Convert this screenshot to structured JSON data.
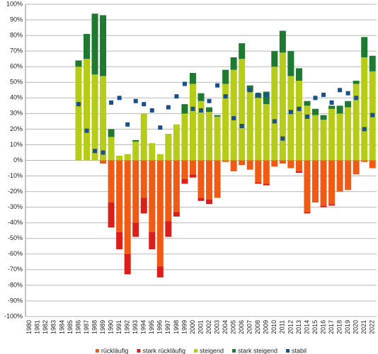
{
  "chart_data": {
    "type": "bar",
    "stacked": true,
    "categories": [
      "1980",
      "1981",
      "1982",
      "1983",
      "1984",
      "1985",
      "1986",
      "1987",
      "1988",
      "1989",
      "1990",
      "1991",
      "1992",
      "1993",
      "1994",
      "1995",
      "1996",
      "1997",
      "1998",
      "1999",
      "2000",
      "2001",
      "2002",
      "2003",
      "2004",
      "2005",
      "2006",
      "2007",
      "2008",
      "2009",
      "2010",
      "2011",
      "2012",
      "2013",
      "2014",
      "2015",
      "2016",
      "2017",
      "2018",
      "2019",
      "2020",
      "2021",
      "2022"
    ],
    "series": [
      {
        "name": "rückläufig",
        "type": "bar",
        "color": "#f05a14",
        "values": [
          null,
          null,
          null,
          null,
          null,
          null,
          0,
          0,
          0,
          -2,
          -27,
          -46,
          -60,
          -40,
          -24,
          -46,
          -68,
          -39,
          -33,
          -12,
          -9,
          -24,
          -25,
          -24,
          -1,
          -7,
          -3,
          -6,
          -14,
          -15,
          -4,
          -2,
          -5,
          -7,
          -33,
          -27,
          -29,
          -28,
          -20,
          -19,
          -9,
          -1,
          -5
        ]
      },
      {
        "name": "stark rückläufig",
        "type": "bar",
        "color": "#dc1e1a",
        "values": [
          null,
          null,
          null,
          null,
          null,
          null,
          0,
          0,
          0,
          0,
          -16,
          -11,
          -13,
          -9,
          -10,
          -11,
          -7,
          -10,
          -3,
          -3,
          -2,
          -2,
          -3,
          0,
          0,
          0,
          0,
          0,
          -1,
          -1,
          0,
          0,
          0,
          -1,
          -1,
          0,
          -1,
          -1,
          0,
          0,
          0,
          0,
          0
        ]
      },
      {
        "name": "steigend",
        "type": "bar",
        "color": "#b5cc18",
        "values": [
          null,
          null,
          null,
          null,
          null,
          null,
          60,
          65,
          55,
          54,
          15,
          3,
          4,
          12,
          30,
          11,
          4,
          17,
          23,
          30,
          49,
          38,
          31,
          28,
          49,
          58,
          65,
          44,
          40,
          36,
          60,
          69,
          54,
          51,
          35,
          29,
          26,
          33,
          30,
          34,
          49,
          66,
          57
        ]
      },
      {
        "name": "stark steigend",
        "type": "bar",
        "color": "#1e7a30",
        "values": [
          null,
          null,
          null,
          null,
          null,
          null,
          4,
          16,
          39,
          39,
          5,
          0,
          0,
          1,
          0,
          0,
          0,
          0,
          0,
          6,
          7,
          5,
          3,
          1,
          9,
          8,
          10,
          4,
          3,
          8,
          10,
          14,
          16,
          8,
          3,
          4,
          3,
          2,
          5,
          4,
          2,
          13,
          10
        ]
      },
      {
        "name": "stabil",
        "type": "scatter",
        "color": "#1a4f8a",
        "values": [
          null,
          null,
          null,
          null,
          null,
          null,
          36,
          19,
          6,
          5,
          37,
          40,
          23,
          38,
          36,
          32,
          21,
          34,
          41,
          49,
          33,
          32,
          38,
          48,
          41,
          27,
          22,
          45,
          42,
          42,
          25,
          14,
          31,
          33,
          28,
          40,
          42,
          37,
          45,
          43,
          40,
          20,
          29
        ]
      }
    ],
    "ylim": [
      -100,
      100
    ],
    "yticks": [
      {
        "value": -100,
        "label": "-100%"
      },
      {
        "value": -90,
        "label": "-90%"
      },
      {
        "value": -80,
        "label": "-80%"
      },
      {
        "value": -70,
        "label": "-70%"
      },
      {
        "value": -60,
        "label": "-60%"
      },
      {
        "value": -50,
        "label": "-50%"
      },
      {
        "value": -40,
        "label": "-40%"
      },
      {
        "value": -30,
        "label": "-30%"
      },
      {
        "value": -20,
        "label": "-20%"
      },
      {
        "value": -10,
        "label": "-10%"
      },
      {
        "value": 0,
        "label": "0%"
      },
      {
        "value": 10,
        "label": "10%"
      },
      {
        "value": 20,
        "label": "20%"
      },
      {
        "value": 30,
        "label": "30%"
      },
      {
        "value": 40,
        "label": "40%"
      },
      {
        "value": 50,
        "label": "50%"
      },
      {
        "value": 60,
        "label": "60%"
      },
      {
        "value": 70,
        "label": "70%"
      },
      {
        "value": 80,
        "label": "80%"
      },
      {
        "value": 90,
        "label": "90%"
      },
      {
        "value": 100,
        "label": "100%"
      }
    ],
    "grid": true,
    "legend": "bottom"
  }
}
